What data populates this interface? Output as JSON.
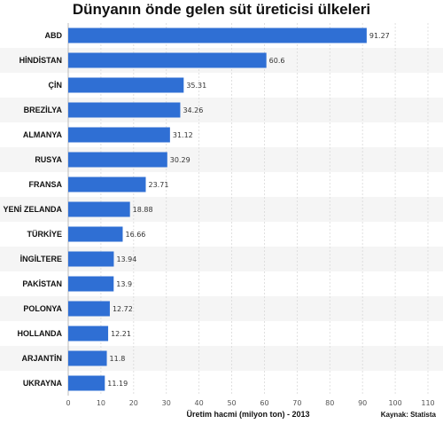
{
  "chart_data": {
    "type": "bar",
    "orientation": "horizontal",
    "title": "Dünyanın önde gelen süt üreticisi ülkeleri",
    "xlabel": "Üretim hacmi (milyon ton) - 2013",
    "ylabel": "",
    "xlim": [
      0,
      110
    ],
    "xticks": [
      "0",
      "10",
      "20",
      "30",
      "40",
      "50",
      "60",
      "70",
      "80",
      "90",
      "100",
      "110"
    ],
    "categories": [
      "ABD",
      "HİNDİSTAN",
      "ÇİN",
      "BREZİLYA",
      "ALMANYA",
      "RUSYA",
      "FRANSA",
      "YENİ ZELANDA",
      "TÜRKİYE",
      "İNGİLTERE",
      "PAKİSTAN",
      "POLONYA",
      "HOLLANDA",
      "ARJANTİN",
      "UKRAYNA"
    ],
    "values": [
      91.27,
      60.6,
      35.31,
      34.26,
      31.12,
      30.29,
      23.71,
      18.88,
      16.66,
      13.94,
      13.9,
      12.72,
      12.21,
      11.8,
      11.19
    ],
    "value_labels": [
      "91.27",
      "60.6",
      "35.31",
      "34.26",
      "31.12",
      "30.29",
      "23.71",
      "18.88",
      "16.66",
      "13.94",
      "13.9",
      "12.72",
      "12.21",
      "11.8",
      "11.19"
    ],
    "source": "Kaynak: Statista",
    "grid": true,
    "legend": "none",
    "bar_color": "#2f6fd4"
  }
}
